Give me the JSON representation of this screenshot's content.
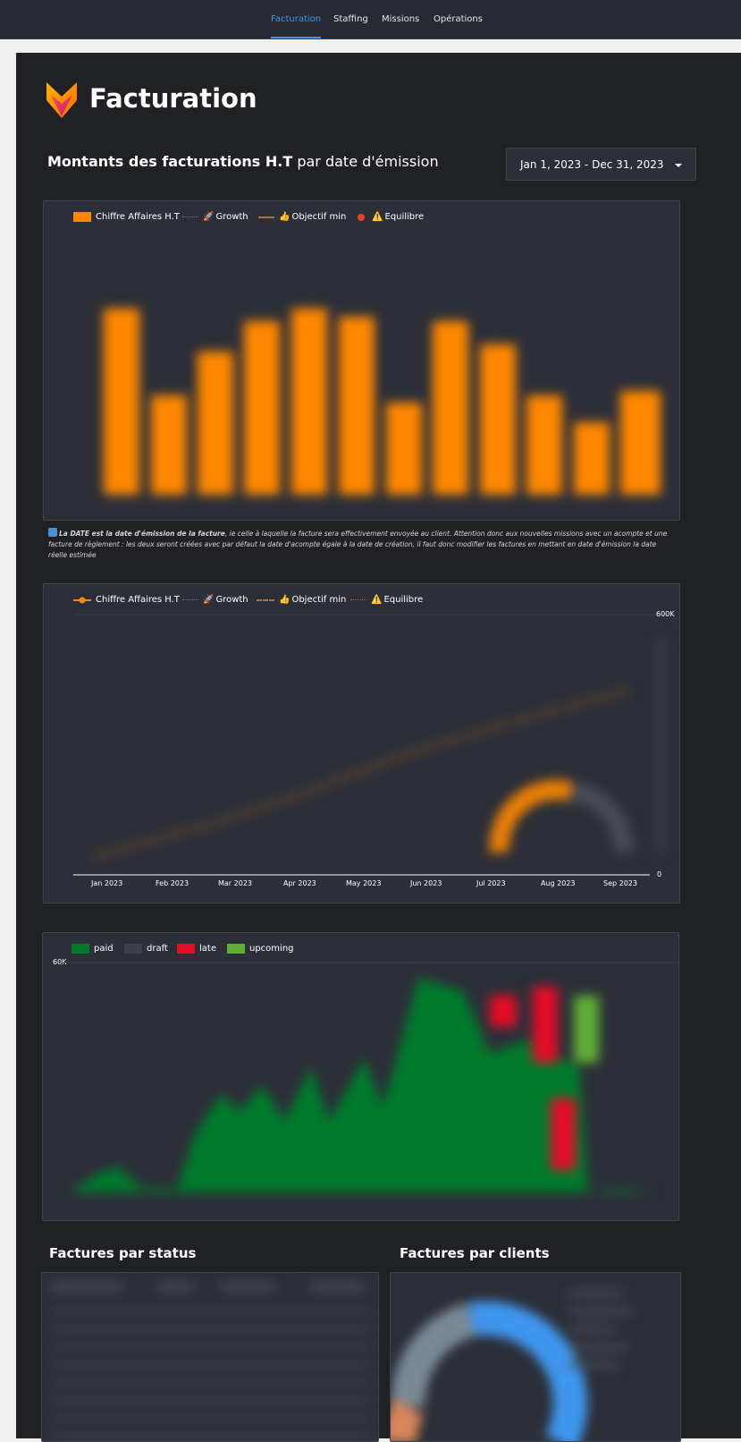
{
  "nav": {
    "tabs": [
      {
        "label": "Facturation",
        "active": true
      },
      {
        "label": "Staffing",
        "active": false
      },
      {
        "label": "Missions",
        "active": false
      },
      {
        "label": "Opérations",
        "active": false
      }
    ],
    "accent": "#3f96ee"
  },
  "page": {
    "title": "Facturation",
    "logo_icon": "fox-logo-icon"
  },
  "section": {
    "title_bold": "Montants des facturations H.T",
    "title_rest": " par date d'émission"
  },
  "date_range": {
    "value": "Jan 1, 2023 - Dec 31, 2023",
    "icon": "caret-down-icon"
  },
  "chart1": {
    "legend": [
      {
        "label": "Chiffre Affaires H.T",
        "style": "box",
        "color": "#ff8800"
      },
      {
        "label": "Growth",
        "emoji": "🚀",
        "style": "dotted",
        "color": "#6d7584"
      },
      {
        "label": "Objectif min",
        "emoji": "👍",
        "style": "solid",
        "color": "#b07230"
      },
      {
        "label": "Equilibre",
        "emoji": "⚠️",
        "style": "dot",
        "color": "#e8401c"
      }
    ]
  },
  "note": {
    "bold": "La DATE est la date d'émission de la facture",
    "rest": ", ie celle à laquelle la facture sera effectivement envoyée au client. Attention donc aux nouvelles missions avec un acompte et une facture de règlement : les deux seront créées avec par défaut la date d'acompte égale à la date de création, il faut donc modifier les factures en mettant en date d'émission la date réelle estimée"
  },
  "chart2": {
    "legend": [
      {
        "label": "Chiffre Affaires H.T",
        "emoji": "",
        "style": "line-dot",
        "color": "#ff8800"
      },
      {
        "label": "Growth",
        "emoji": "🚀",
        "style": "dotted",
        "color": "#6d7584"
      },
      {
        "label": "Objectif min",
        "emoji": "👍",
        "style": "dashed",
        "color": "#b07230"
      },
      {
        "label": "Equilibre",
        "emoji": "⚠️",
        "style": "dotted",
        "color": "#e8401c"
      }
    ],
    "x_ticks": [
      "Jan 2023",
      "Feb 2023",
      "Mar 2023",
      "Apr 2023",
      "May 2023",
      "Jun 2023",
      "Jul 2023",
      "Aug 2023",
      "Sep 2023"
    ],
    "y_max_label": "600K",
    "y_min_label": "0"
  },
  "chart3": {
    "legend": [
      {
        "label": "paid",
        "color": "#007b2c"
      },
      {
        "label": "draft",
        "color": "#3c4048"
      },
      {
        "label": "late",
        "color": "#e40d27"
      },
      {
        "label": "upcoming",
        "color": "#5fad35"
      }
    ],
    "y_max_label": "60K"
  },
  "bottom": {
    "status_title": "Factures par status",
    "clients_title": "Factures par clients"
  }
}
